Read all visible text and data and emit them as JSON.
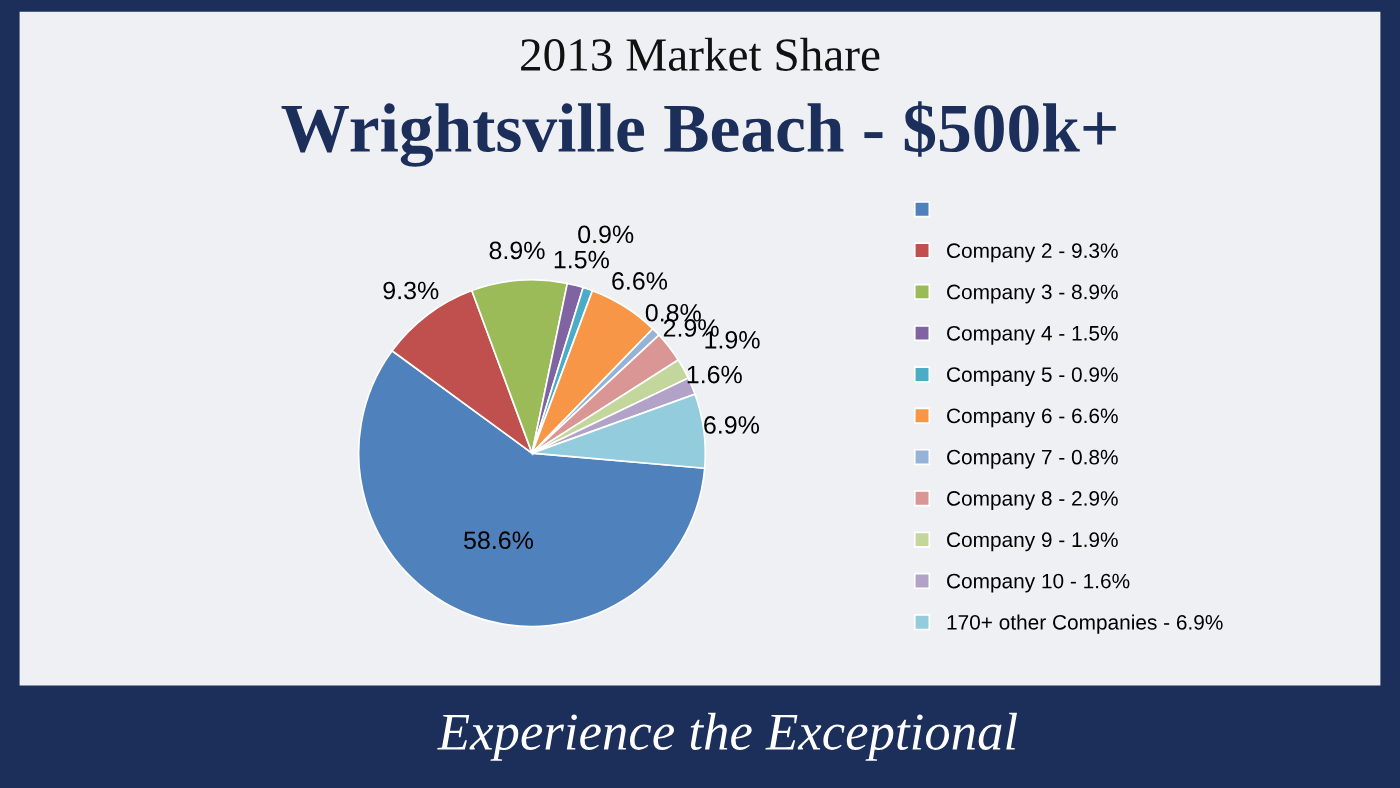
{
  "chart_data": {
    "type": "pie",
    "title": "2013 Market Share",
    "subtitle": "Wrightsville Beach - $500k+",
    "categories": [
      null,
      "Company 2 - 9.3%",
      "Company 3 - 8.9%",
      "Company 4 - 1.5%",
      "Company 5 - 0.9%",
      "Company 6 - 6.6%",
      "Company 7 - 0.8%",
      "Company 8 - 2.9%",
      "Company 9 - 1.9%",
      "Company 10 - 1.6%",
      "170+ other Companies - 6.9%"
    ],
    "values": [
      58.6,
      9.3,
      8.9,
      1.5,
      0.9,
      6.6,
      0.8,
      2.9,
      1.9,
      1.6,
      6.9
    ],
    "value_labels": [
      "58.6%",
      "9.3%",
      "8.9%",
      "1.5%",
      "0.9%",
      "6.6%",
      "0.8%",
      "2.9%",
      "1.9%",
      "1.6%",
      "6.9%"
    ],
    "colors": [
      "#4f81bd",
      "#c0504d",
      "#9bbb59",
      "#8064a2",
      "#4bacc6",
      "#f79646",
      "#95b3d7",
      "#da9694",
      "#c3d69b",
      "#b3a2c7",
      "#93cddd"
    ],
    "legend": "right",
    "annotations": [
      "Experience the Exceptional"
    ]
  }
}
